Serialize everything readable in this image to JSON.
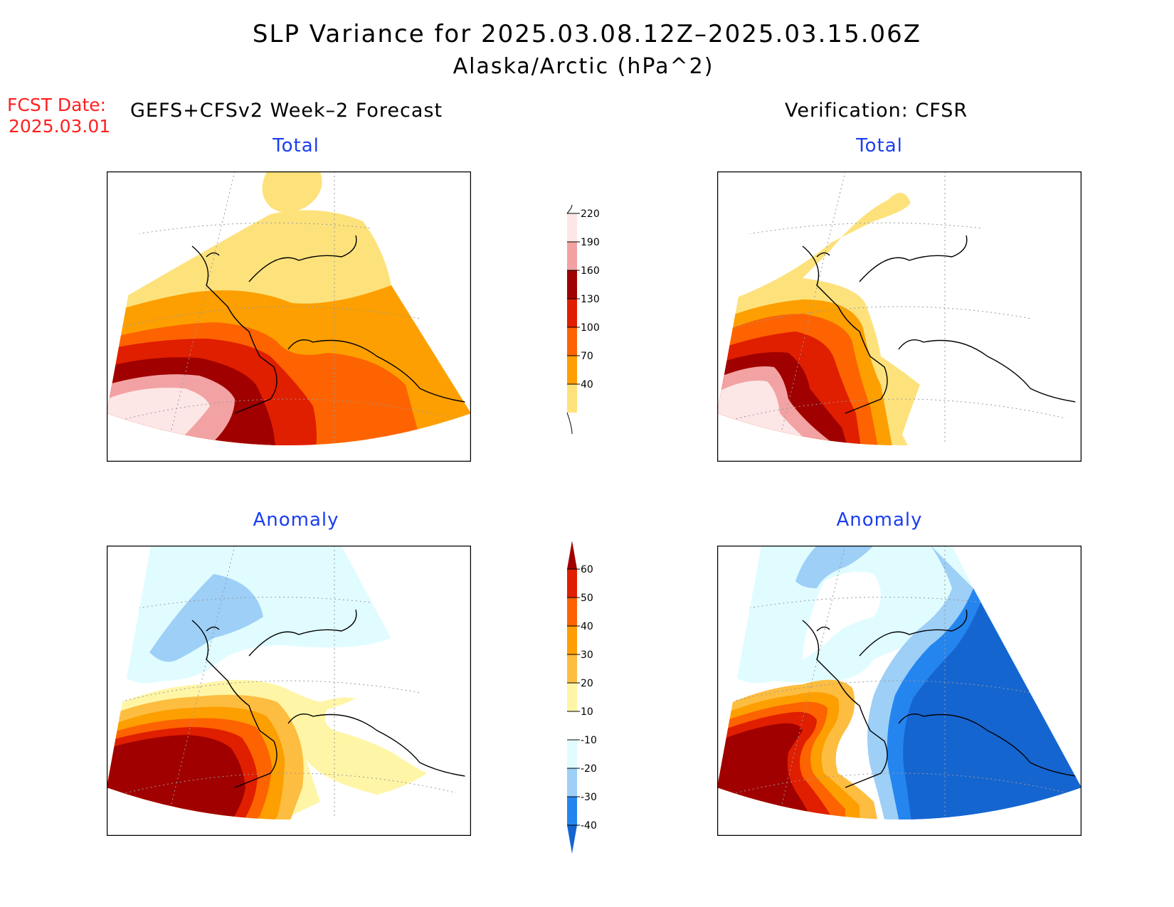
{
  "title": "SLP Variance for 2025.03.08.12Z–2025.03.15.06Z",
  "subtitle": "Alaska/Arctic (hPa^2)",
  "fcst_label": "FCST Date:",
  "fcst_date": "2025.03.01",
  "forecast_heading": "GEFS+CFSv2 Week–2 Forecast",
  "verification_heading": "Verification: CFSR",
  "panels": {
    "forecast_total": {
      "title": "Total"
    },
    "verification_total": {
      "title": "Total"
    },
    "forecast_anomaly": {
      "title": "Anomaly"
    },
    "verification_anomaly": {
      "title": "Anomaly"
    }
  },
  "colorbars": {
    "total": {
      "levels": [
        "40",
        "70",
        "100",
        "130",
        "160",
        "190",
        "220"
      ],
      "colors": [
        "#fde27c",
        "#fd9f00",
        "#fd6300",
        "#e01e00",
        "#a00000",
        "#f2a2a2",
        "#fde6e6"
      ]
    },
    "anomaly": {
      "levels": [
        "-40",
        "-30",
        "-20",
        "-10",
        "10",
        "20",
        "30",
        "40",
        "50",
        "60"
      ],
      "colors": [
        "#1565d0",
        "#2585ef",
        "#9dcff7",
        "#e1fcff",
        "#ffffff",
        "#fff5a6",
        "#fdbd40",
        "#fd9f00",
        "#fd6300",
        "#e01e00",
        "#a00000"
      ]
    }
  }
}
